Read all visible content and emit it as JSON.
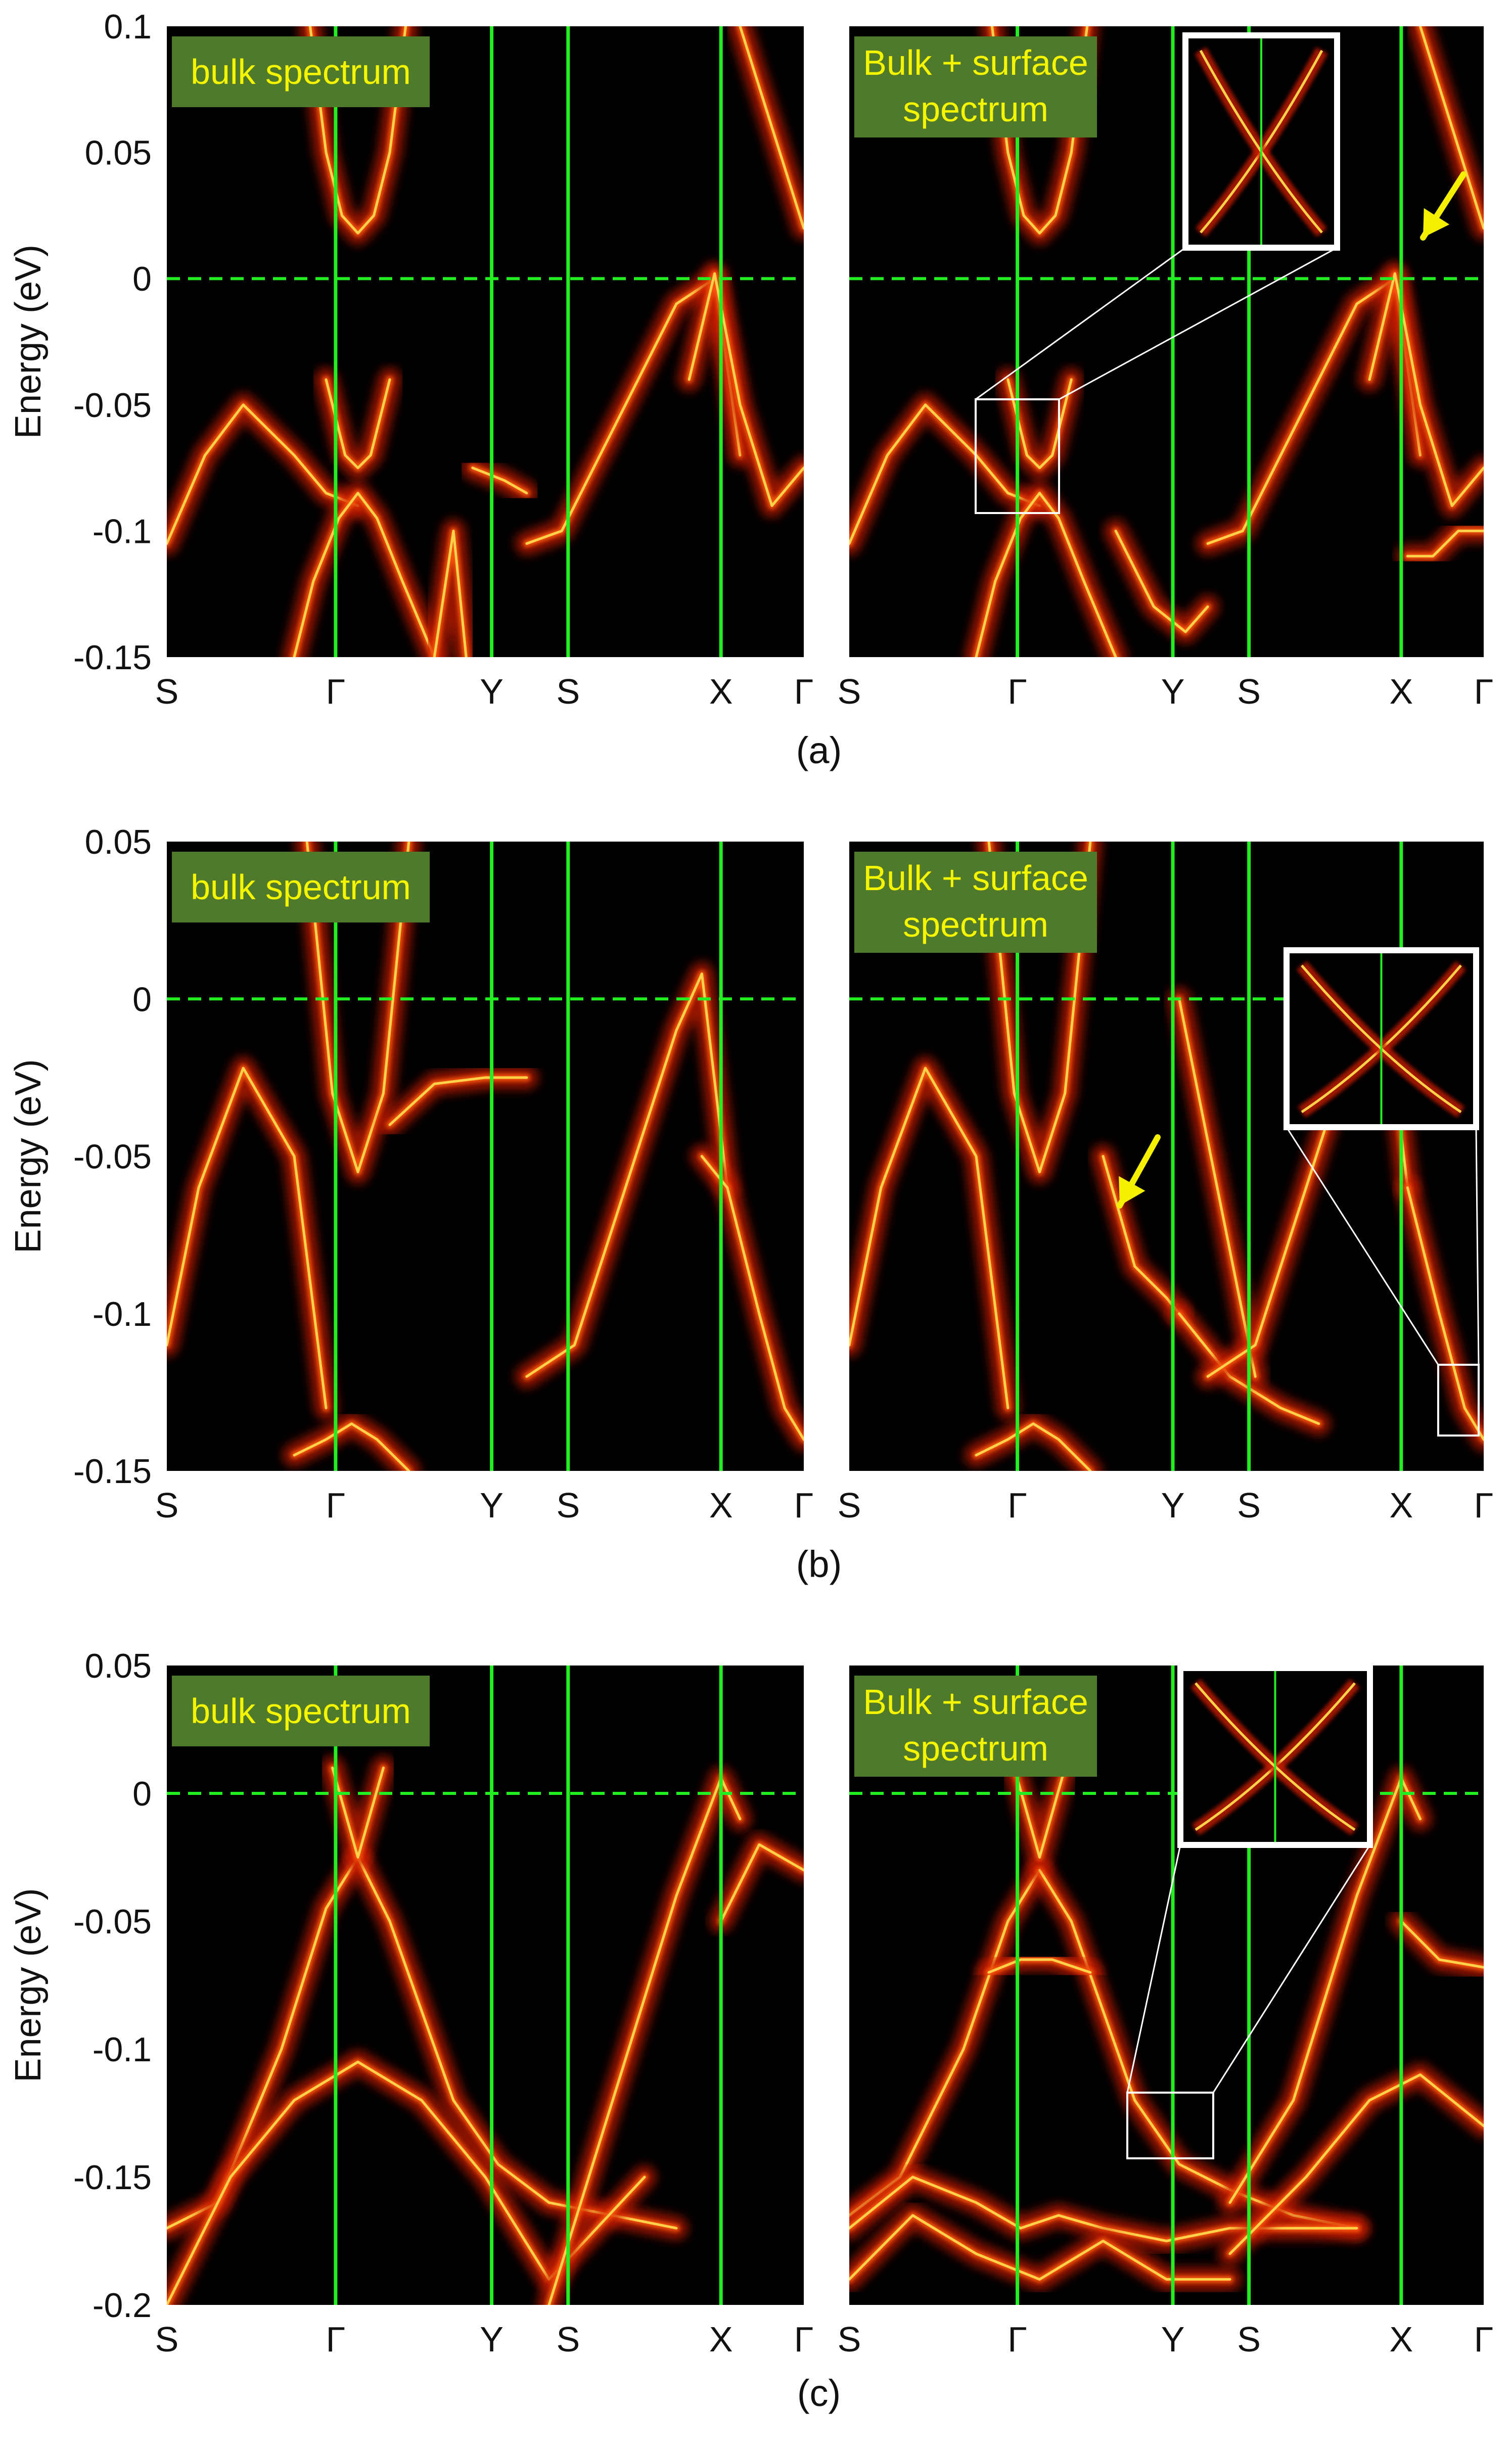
{
  "colors": {
    "background": "#000000",
    "band_glow": "#c81a00",
    "band_core": "#ffd24a",
    "symmetry_line": "#22ee22",
    "fermi_line": "#22ee22",
    "badge_fill": "#4f7a2b",
    "badge_text": "#f5f500",
    "arrow": "#f5f000",
    "inset_frame": "#ffffff"
  },
  "icons": {
    "arrow": "yellow-arrow-icon"
  },
  "ylabel": "Energy (eV)",
  "k_path": [
    "S",
    "Γ",
    "Y",
    "S",
    "X",
    "Γ"
  ],
  "chart_data": [
    {
      "type": "heatmap",
      "caption": "(a)",
      "ylim": [
        -0.15,
        0.1
      ],
      "yticks": [
        "0.1",
        "0.05",
        "0",
        "-0.05",
        "-0.1",
        "-0.15"
      ],
      "fermi_level": 0,
      "panels": [
        {
          "badge": [
            "bulk spectrum"
          ],
          "bands": [
            {
              "x": [
                0,
                0.06,
                0.12,
                0.2,
                0.25,
                0.3
              ],
              "y": [
                -0.105,
                -0.07,
                -0.05,
                -0.07,
                -0.085,
                -0.09
              ]
            },
            {
              "x": [
                0.2,
                0.23,
                0.27,
                0.3,
                0.33,
                0.37,
                0.42
              ],
              "y": [
                -0.15,
                -0.12,
                -0.095,
                -0.085,
                -0.095,
                -0.12,
                -0.15
              ]
            },
            {
              "x": [
                0.225,
                0.25,
                0.275,
                0.3,
                0.325,
                0.35,
                0.375
              ],
              "y": [
                0.1,
                0.05,
                0.025,
                0.018,
                0.025,
                0.05,
                0.1
              ]
            },
            {
              "x": [
                0.25,
                0.28,
                0.3,
                0.32,
                0.35
              ],
              "y": [
                -0.04,
                -0.07,
                -0.075,
                -0.07,
                -0.04
              ]
            },
            {
              "x": [
                0.42,
                0.45,
                0.47
              ],
              "y": [
                -0.15,
                -0.1,
                -0.15
              ]
            },
            {
              "x": [
                0.48,
                0.53,
                0.565
              ],
              "y": [
                -0.075,
                -0.08,
                -0.085
              ]
            },
            {
              "x": [
                0.565,
                0.62,
                0.7,
                0.8,
                0.86,
                0.9
              ],
              "y": [
                -0.105,
                -0.1,
                -0.06,
                -0.01,
                0,
                -0.07
              ]
            },
            {
              "x": [
                0.82,
                0.86,
                0.9,
                0.95,
                1.0
              ],
              "y": [
                -0.04,
                0.002,
                -0.05,
                -0.09,
                -0.075
              ]
            },
            {
              "x": [
                0.9,
                0.95,
                1.0
              ],
              "y": [
                0.1,
                0.06,
                0.02
              ]
            }
          ]
        },
        {
          "badge": [
            "Bulk + surface",
            "spectrum"
          ],
          "inset": true,
          "arrow": true,
          "bands": [
            {
              "x": [
                0,
                0.06,
                0.12,
                0.2,
                0.25,
                0.3
              ],
              "y": [
                -0.105,
                -0.07,
                -0.05,
                -0.07,
                -0.085,
                -0.09
              ]
            },
            {
              "x": [
                0.2,
                0.23,
                0.27,
                0.3,
                0.33,
                0.37,
                0.42
              ],
              "y": [
                -0.15,
                -0.12,
                -0.095,
                -0.085,
                -0.095,
                -0.12,
                -0.15
              ]
            },
            {
              "x": [
                0.225,
                0.25,
                0.275,
                0.3,
                0.325,
                0.35,
                0.375
              ],
              "y": [
                0.1,
                0.05,
                0.025,
                0.018,
                0.025,
                0.05,
                0.1
              ]
            },
            {
              "x": [
                0.25,
                0.28,
                0.3,
                0.32,
                0.35
              ],
              "y": [
                -0.04,
                -0.07,
                -0.075,
                -0.07,
                -0.04
              ]
            },
            {
              "x": [
                0.42,
                0.48,
                0.53,
                0.565
              ],
              "y": [
                -0.1,
                -0.13,
                -0.14,
                -0.13
              ]
            },
            {
              "x": [
                0.565,
                0.62,
                0.7,
                0.8,
                0.86,
                0.9
              ],
              "y": [
                -0.105,
                -0.1,
                -0.06,
                -0.01,
                0,
                -0.07
              ]
            },
            {
              "x": [
                0.82,
                0.86,
                0.9,
                0.95,
                1.0
              ],
              "y": [
                -0.04,
                0.002,
                -0.05,
                -0.09,
                -0.075
              ]
            },
            {
              "x": [
                0.88,
                0.92,
                0.96,
                1.0
              ],
              "y": [
                -0.11,
                -0.11,
                -0.1,
                -0.1
              ]
            },
            {
              "x": [
                0.9,
                0.95,
                1.0
              ],
              "y": [
                0.1,
                0.06,
                0.02
              ]
            }
          ]
        }
      ]
    },
    {
      "type": "heatmap",
      "caption": "(b)",
      "ylim": [
        -0.15,
        0.05
      ],
      "yticks": [
        "0.05",
        "0",
        "-0.05",
        "-0.1",
        "-0.15"
      ],
      "fermi_level": 0,
      "panels": [
        {
          "badge": [
            "bulk spectrum"
          ],
          "bands": [
            {
              "x": [
                0,
                0.05,
                0.12,
                0.2,
                0.25
              ],
              "y": [
                -0.11,
                -0.06,
                -0.022,
                -0.05,
                -0.13
              ]
            },
            {
              "x": [
                0.2,
                0.25,
                0.29,
                0.33,
                0.38
              ],
              "y": [
                -0.145,
                -0.14,
                -0.135,
                -0.14,
                -0.15
              ]
            },
            {
              "x": [
                0.22,
                0.26,
                0.3,
                0.34,
                0.38
              ],
              "y": [
                0.05,
                -0.03,
                -0.055,
                -0.03,
                0.05
              ]
            },
            {
              "x": [
                0.35,
                0.42,
                0.5,
                0.565
              ],
              "y": [
                -0.04,
                -0.027,
                -0.025,
                -0.025
              ]
            },
            {
              "x": [
                0.565,
                0.64,
                0.72,
                0.8,
                0.84,
                0.88
              ],
              "y": [
                -0.12,
                -0.11,
                -0.06,
                -0.01,
                0.008,
                -0.06
              ]
            },
            {
              "x": [
                0.84,
                0.88,
                0.93,
                0.97,
                1.0
              ],
              "y": [
                -0.05,
                -0.06,
                -0.1,
                -0.13,
                -0.14
              ]
            }
          ]
        },
        {
          "badge": [
            "Bulk + surface",
            "spectrum"
          ],
          "inset": true,
          "arrow": true,
          "bands": [
            {
              "x": [
                0,
                0.05,
                0.12,
                0.2,
                0.25
              ],
              "y": [
                -0.11,
                -0.06,
                -0.022,
                -0.05,
                -0.13
              ]
            },
            {
              "x": [
                0.2,
                0.25,
                0.29,
                0.33,
                0.38
              ],
              "y": [
                -0.145,
                -0.14,
                -0.135,
                -0.14,
                -0.15
              ]
            },
            {
              "x": [
                0.22,
                0.26,
                0.3,
                0.34,
                0.38
              ],
              "y": [
                0.05,
                -0.03,
                -0.055,
                -0.03,
                0.05
              ]
            },
            {
              "x": [
                0.4,
                0.45,
                0.5,
                0.52
              ],
              "y": [
                -0.05,
                -0.085,
                -0.095,
                -0.1
              ]
            },
            {
              "x": [
                0.52,
                0.6,
                0.68,
                0.74
              ],
              "y": [
                -0.1,
                -0.12,
                -0.13,
                -0.135
              ]
            },
            {
              "x": [
                0.52,
                0.58,
                0.64
              ],
              "y": [
                0.0,
                -0.06,
                -0.12
              ]
            },
            {
              "x": [
                0.565,
                0.64,
                0.72,
                0.8,
                0.84,
                0.88
              ],
              "y": [
                -0.12,
                -0.11,
                -0.06,
                -0.01,
                0.008,
                -0.06
              ]
            },
            {
              "x": [
                0.88,
                0.93,
                0.97,
                1.0
              ],
              "y": [
                -0.06,
                -0.1,
                -0.13,
                -0.14
              ]
            }
          ]
        }
      ]
    },
    {
      "type": "heatmap",
      "caption": "(c)",
      "ylim": [
        -0.2,
        0.05
      ],
      "yticks": [
        "0.05",
        "0",
        "-0.05",
        "-0.1",
        "-0.15",
        "-0.2"
      ],
      "fermi_level": 0,
      "panels": [
        {
          "badge": [
            "bulk spectrum"
          ],
          "bands": [
            {
              "x": [
                0,
                0.08,
                0.18,
                0.25,
                0.3
              ],
              "y": [
                -0.17,
                -0.16,
                -0.1,
                -0.045,
                -0.025
              ]
            },
            {
              "x": [
                0.3,
                0.35,
                0.45,
                0.52,
                0.6,
                0.7,
                0.8
              ],
              "y": [
                -0.025,
                -0.05,
                -0.12,
                -0.145,
                -0.16,
                -0.165,
                -0.17
              ]
            },
            {
              "x": [
                0,
                0.1,
                0.2,
                0.3,
                0.4,
                0.5,
                0.6,
                0.75
              ],
              "y": [
                -0.2,
                -0.15,
                -0.12,
                -0.105,
                -0.12,
                -0.15,
                -0.19,
                -0.15
              ]
            },
            {
              "x": [
                0.26,
                0.3,
                0.34
              ],
              "y": [
                0.01,
                -0.025,
                0.01
              ]
            },
            {
              "x": [
                0.6,
                0.7,
                0.8,
                0.87,
                0.9
              ],
              "y": [
                -0.2,
                -0.12,
                -0.04,
                0.006,
                -0.01
              ]
            },
            {
              "x": [
                0.87,
                0.93,
                1.0
              ],
              "y": [
                -0.05,
                -0.02,
                -0.03
              ]
            }
          ]
        },
        {
          "badge": [
            "Bulk + surface",
            "spectrum"
          ],
          "inset": true,
          "bands": [
            {
              "x": [
                0,
                0.08,
                0.18,
                0.25,
                0.3
              ],
              "y": [
                -0.165,
                -0.15,
                -0.1,
                -0.05,
                -0.03
              ]
            },
            {
              "x": [
                0.3,
                0.35,
                0.45,
                0.52,
                0.6,
                0.7,
                0.8
              ],
              "y": [
                -0.03,
                -0.05,
                -0.12,
                -0.145,
                -0.155,
                -0.165,
                -0.17
              ]
            },
            {
              "x": [
                0,
                0.1,
                0.2,
                0.27,
                0.33,
                0.4,
                0.5,
                0.6,
                0.7,
                0.8
              ],
              "y": [
                -0.17,
                -0.15,
                -0.16,
                -0.17,
                -0.165,
                -0.17,
                -0.175,
                -0.17,
                -0.17,
                -0.17
              ]
            },
            {
              "x": [
                0.0,
                0.1,
                0.2,
                0.3,
                0.4,
                0.5,
                0.6
              ],
              "y": [
                -0.19,
                -0.165,
                -0.18,
                -0.19,
                -0.175,
                -0.19,
                -0.19
              ]
            },
            {
              "x": [
                0.22,
                0.27,
                0.32,
                0.38
              ],
              "y": [
                -0.07,
                -0.065,
                -0.065,
                -0.07
              ]
            },
            {
              "x": [
                0.26,
                0.3,
                0.34
              ],
              "y": [
                0.01,
                -0.025,
                0.01
              ]
            },
            {
              "x": [
                0.6,
                0.7,
                0.8,
                0.87,
                0.9
              ],
              "y": [
                -0.16,
                -0.12,
                -0.04,
                0.006,
                -0.01
              ]
            },
            {
              "x": [
                0.87,
                0.93,
                1.0
              ],
              "y": [
                -0.05,
                -0.065,
                -0.068
              ]
            },
            {
              "x": [
                0.6,
                0.72,
                0.82,
                0.9,
                1.0
              ],
              "y": [
                -0.18,
                -0.15,
                -0.12,
                -0.11,
                -0.13
              ]
            }
          ]
        }
      ]
    }
  ]
}
